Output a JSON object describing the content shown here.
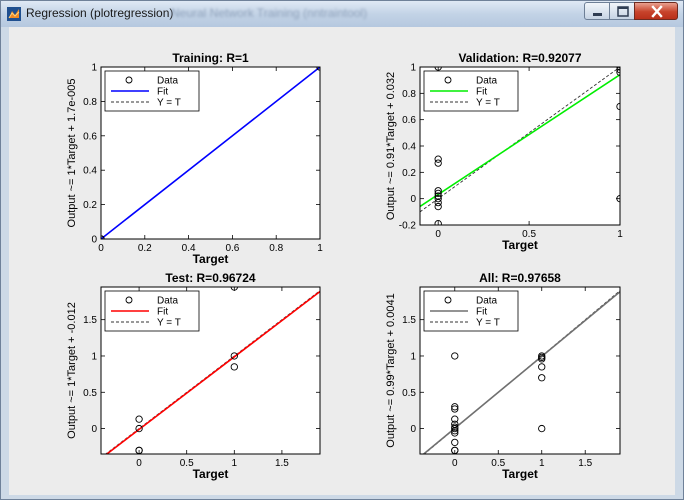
{
  "window": {
    "title": "Regression (plotregression)",
    "title_ghost": "Neural Network Training (nntraintool)",
    "buttons": {
      "minimize_icon": "minimize-icon",
      "maximize_icon": "maximize-icon",
      "close_icon": "close-icon"
    }
  },
  "legend_entries": {
    "data": "Data",
    "fit": "Fit",
    "yt": "Y = T"
  },
  "chart_data": [
    {
      "type": "scatter",
      "title": "Training: R=1",
      "xlabel": "Target",
      "ylabel": "Output ~= 1*Target + 1.7e-005",
      "xlim": [
        0,
        1
      ],
      "ylim": [
        0,
        1
      ],
      "xticks": [
        0,
        0.2,
        0.4,
        0.6,
        0.8,
        1
      ],
      "yticks": [
        0,
        0.2,
        0.4,
        0.6,
        0.8,
        1
      ],
      "xtick_labels": [
        "0",
        "0.2",
        "0.4",
        "0.6",
        "0.8",
        "1"
      ],
      "ytick_labels": [
        "0",
        "0.2",
        "0.4",
        "0.6",
        "0.8",
        "1"
      ],
      "fit": {
        "slope": 1,
        "intercept": 1.7e-05,
        "color": "#0000ff"
      },
      "legend": "top-left",
      "points": [
        [
          0,
          0
        ],
        [
          0,
          0
        ],
        [
          0,
          0
        ],
        [
          0,
          0
        ],
        [
          1,
          1
        ],
        [
          1,
          1
        ]
      ]
    },
    {
      "type": "scatter",
      "title": "Validation: R=0.92077",
      "xlabel": "Target",
      "ylabel": "Output ~= 0.91*Target + 0.032",
      "xlim": [
        -0.1,
        1
      ],
      "ylim": [
        -0.2,
        1
      ],
      "xticks": [
        0,
        0.5,
        1
      ],
      "yticks": [
        -0.2,
        0,
        0.2,
        0.4,
        0.6,
        0.8,
        1
      ],
      "xtick_labels": [
        "0",
        "0.5",
        "1"
      ],
      "ytick_labels": [
        "-0.2",
        "0",
        "0.2",
        "0.4",
        "0.6",
        "0.8",
        "1"
      ],
      "fit": {
        "slope": 0.91,
        "intercept": 0.032,
        "color": "#00ee00"
      },
      "legend": "top-left",
      "points": [
        [
          0,
          1
        ],
        [
          0,
          0.3
        ],
        [
          0,
          0.27
        ],
        [
          0,
          0.06
        ],
        [
          0,
          0.04
        ],
        [
          0,
          0.02
        ],
        [
          0,
          0
        ],
        [
          0,
          -0.03
        ],
        [
          0,
          -0.06
        ],
        [
          0,
          -0.19
        ],
        [
          1,
          1
        ],
        [
          1,
          0.98
        ],
        [
          1,
          0.96
        ],
        [
          1,
          0.7
        ],
        [
          1,
          0
        ]
      ]
    },
    {
      "type": "scatter",
      "title": "Test: R=0.96724",
      "xlabel": "Target",
      "ylabel": "Output ~= 1*Target + -0.012",
      "xlim": [
        -0.4,
        1.9
      ],
      "ylim": [
        -0.35,
        1.95
      ],
      "xticks": [
        0,
        0.5,
        1,
        1.5
      ],
      "yticks": [
        0,
        0.5,
        1,
        1.5
      ],
      "xtick_labels": [
        "0",
        "0.5",
        "1",
        "1.5"
      ],
      "ytick_labels": [
        "0",
        "0.5",
        "1",
        "1.5"
      ],
      "fit": {
        "slope": 1,
        "intercept": -0.012,
        "color": "#ff0000"
      },
      "legend": "top-left",
      "points": [
        [
          0,
          0.13
        ],
        [
          0,
          0
        ],
        [
          0,
          -0.3
        ],
        [
          0,
          -0.3
        ],
        [
          1,
          1.95
        ],
        [
          1,
          1
        ],
        [
          1,
          0.85
        ]
      ]
    },
    {
      "type": "scatter",
      "title": "All: R=0.97658",
      "xlabel": "Target",
      "ylabel": "Output ~= 0.99*Target + 0.0041",
      "xlim": [
        -0.4,
        1.9
      ],
      "ylim": [
        -0.35,
        1.95
      ],
      "xticks": [
        0,
        0.5,
        1,
        1.5
      ],
      "yticks": [
        0,
        0.5,
        1,
        1.5
      ],
      "xtick_labels": [
        "0",
        "0.5",
        "1",
        "1.5"
      ],
      "ytick_labels": [
        "0",
        "0.5",
        "1",
        "1.5"
      ],
      "fit": {
        "slope": 0.99,
        "intercept": 0.0041,
        "color": "#707070"
      },
      "legend": "top-left",
      "points": [
        [
          0,
          1
        ],
        [
          0,
          0.3
        ],
        [
          0,
          0.27
        ],
        [
          0,
          0.13
        ],
        [
          0,
          0.06
        ],
        [
          0,
          0.02
        ],
        [
          0,
          0
        ],
        [
          0,
          -0.03
        ],
        [
          0,
          -0.06
        ],
        [
          0,
          -0.19
        ],
        [
          0,
          -0.3
        ],
        [
          0,
          -0.3
        ],
        [
          1,
          1
        ],
        [
          1,
          0.98
        ],
        [
          1,
          0.96
        ],
        [
          1,
          0.85
        ],
        [
          1,
          0.7
        ],
        [
          1,
          0
        ]
      ]
    }
  ]
}
